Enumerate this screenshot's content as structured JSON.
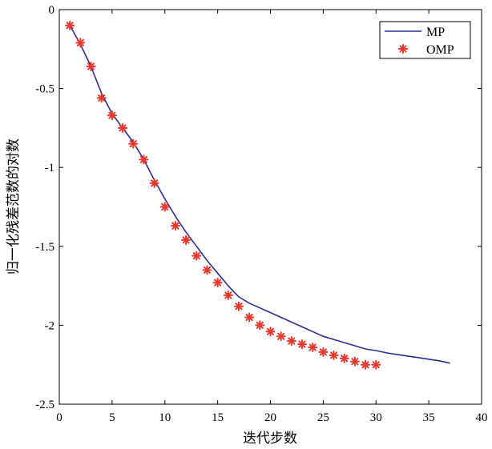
{
  "chart_data": {
    "type": "line",
    "title": "",
    "xlabel": "迭代步数",
    "ylabel": "归一化残差范数的对数",
    "xlim": [
      0,
      40
    ],
    "ylim": [
      -2.5,
      0
    ],
    "xticks": [
      0,
      5,
      10,
      15,
      20,
      25,
      30,
      35,
      40
    ],
    "yticks": [
      0,
      -0.5,
      -1,
      -1.5,
      -2,
      -2.5
    ],
    "xtick_labels": [
      "0",
      "5",
      "10",
      "15",
      "20",
      "25",
      "30",
      "35",
      "40"
    ],
    "ytick_labels": [
      "0",
      "-0.5",
      "-1",
      "-1.5",
      "-2",
      "-2.5"
    ],
    "legend_position": "top-right",
    "series": [
      {
        "name": "MP",
        "style": "line",
        "color": "#2b2f8f",
        "x": [
          1,
          2,
          3,
          4,
          5,
          6,
          7,
          8,
          9,
          10,
          11,
          12,
          13,
          14,
          15,
          16,
          17,
          18,
          19,
          20,
          21,
          22,
          23,
          24,
          25,
          26,
          27,
          28,
          29,
          30,
          31,
          32,
          33,
          34,
          35,
          36,
          37
        ],
        "y": [
          -0.1,
          -0.22,
          -0.36,
          -0.53,
          -0.66,
          -0.75,
          -0.84,
          -0.95,
          -1.08,
          -1.2,
          -1.31,
          -1.41,
          -1.5,
          -1.59,
          -1.67,
          -1.75,
          -1.82,
          -1.86,
          -1.89,
          -1.92,
          -1.95,
          -1.98,
          -2.01,
          -2.04,
          -2.07,
          -2.09,
          -2.11,
          -2.13,
          -2.15,
          -2.16,
          -2.175,
          -2.185,
          -2.195,
          -2.205,
          -2.215,
          -2.225,
          -2.24
        ]
      },
      {
        "name": "OMP",
        "style": "marker",
        "marker": "*",
        "color": "#e8382c",
        "x": [
          1,
          2,
          3,
          4,
          5,
          6,
          7,
          8,
          9,
          10,
          11,
          12,
          13,
          14,
          15,
          16,
          17,
          18,
          19,
          20,
          21,
          22,
          23,
          24,
          25,
          26,
          27,
          28,
          29,
          30
        ],
        "y": [
          -0.1,
          -0.21,
          -0.36,
          -0.56,
          -0.67,
          -0.75,
          -0.85,
          -0.95,
          -1.1,
          -1.25,
          -1.37,
          -1.46,
          -1.56,
          -1.65,
          -1.73,
          -1.81,
          -1.88,
          -1.95,
          -2.0,
          -2.04,
          -2.07,
          -2.1,
          -2.12,
          -2.14,
          -2.17,
          -2.19,
          -2.21,
          -2.23,
          -2.25,
          -2.25
        ]
      }
    ]
  }
}
